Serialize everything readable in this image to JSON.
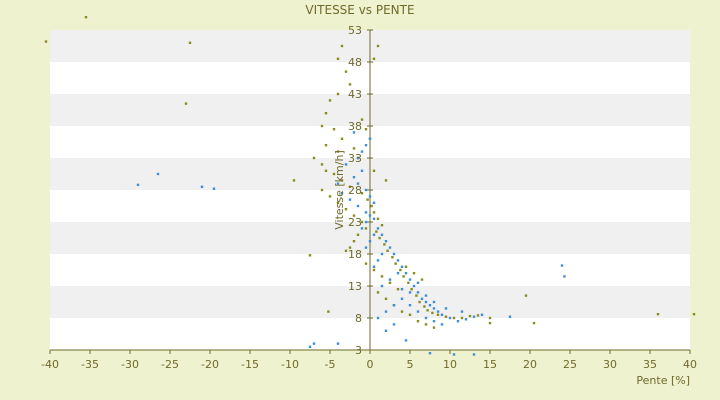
{
  "chart_data": {
    "type": "scatter",
    "title": "VITESSE vs PENTE",
    "xlabel": "Pente [%]",
    "ylabel": "Vitesse [km/h]",
    "xlim": [
      -40,
      40
    ],
    "ylim": [
      3,
      53
    ],
    "xticks": [
      -40,
      -35,
      -30,
      -25,
      -20,
      -15,
      -10,
      -5,
      0,
      5,
      10,
      15,
      20,
      25,
      30,
      35,
      40
    ],
    "yticks": [
      3,
      8,
      13,
      18,
      23,
      28,
      33,
      38,
      43,
      48,
      53
    ],
    "grid": "alternating horizontal bands",
    "legend": "none",
    "colors": {
      "background": "#eef2cf",
      "band_light": "#ffffff",
      "band_dark": "#f0f0f0",
      "axis": "#6e6a2a",
      "series_a": "#8a8a1e",
      "series_b": "#3a8fd6"
    },
    "series": [
      {
        "color": "#8a8a1e",
        "points": [
          [
            -40.5,
            51.2
          ],
          [
            -35.5,
            55.0
          ],
          [
            -22.5,
            51.0
          ],
          [
            -23.0,
            41.5
          ],
          [
            -9.5,
            29.5
          ],
          [
            -7.5,
            17.8
          ],
          [
            -5.2,
            9.0
          ],
          [
            -3.5,
            50.5
          ],
          [
            -4.0,
            48.5
          ],
          [
            -3.0,
            46.5
          ],
          [
            -2.5,
            44.5
          ],
          [
            -4.0,
            43.0
          ],
          [
            -5.0,
            42.0
          ],
          [
            -5.5,
            40.0
          ],
          [
            -6.0,
            38.0
          ],
          [
            -4.5,
            37.5
          ],
          [
            -3.5,
            36.0
          ],
          [
            -5.5,
            35.0
          ],
          [
            -4.0,
            34.0
          ],
          [
            -7.0,
            33.0
          ],
          [
            -6.0,
            32.0
          ],
          [
            -5.5,
            31.0
          ],
          [
            -4.5,
            30.5
          ],
          [
            -3.5,
            29.5
          ],
          [
            -2.5,
            28.5
          ],
          [
            -6.0,
            28.0
          ],
          [
            -5.0,
            27.0
          ],
          [
            -4.0,
            26.0
          ],
          [
            -3.0,
            25.0
          ],
          [
            -2.0,
            24.0
          ],
          [
            -1.0,
            23.0
          ],
          [
            -0.5,
            22.0
          ],
          [
            -1.5,
            21.0
          ],
          [
            -2.0,
            20.0
          ],
          [
            -2.5,
            19.0
          ],
          [
            -3.0,
            18.5
          ],
          [
            -1.0,
            27.5
          ],
          [
            -0.3,
            26.5
          ],
          [
            0.2,
            25.5
          ],
          [
            0.5,
            24.5
          ],
          [
            1.0,
            23.5
          ],
          [
            1.5,
            22.5
          ],
          [
            0.8,
            21.5
          ],
          [
            1.2,
            20.5
          ],
          [
            1.8,
            19.5
          ],
          [
            2.2,
            18.5
          ],
          [
            2.8,
            17.5
          ],
          [
            3.2,
            16.5
          ],
          [
            3.8,
            15.5
          ],
          [
            4.2,
            14.5
          ],
          [
            4.8,
            13.5
          ],
          [
            5.2,
            12.5
          ],
          [
            5.8,
            11.5
          ],
          [
            6.2,
            10.5
          ],
          [
            6.8,
            9.8
          ],
          [
            7.2,
            9.2
          ],
          [
            7.8,
            8.8
          ],
          [
            8.5,
            8.5
          ],
          [
            9.5,
            8.2
          ],
          [
            10.5,
            8.0
          ],
          [
            11.5,
            8.0
          ],
          [
            12.5,
            8.3
          ],
          [
            13.5,
            8.4
          ],
          [
            15.0,
            7.2
          ],
          [
            15.0,
            8.0
          ],
          [
            19.5,
            11.5
          ],
          [
            20.5,
            7.2
          ],
          [
            36.0,
            8.6
          ],
          [
            40.5,
            8.6
          ],
          [
            2.0,
            29.5
          ],
          [
            1.0,
            50.5
          ],
          [
            0.5,
            48.5
          ],
          [
            -1.0,
            39.0
          ],
          [
            -0.5,
            37.5
          ],
          [
            0.0,
            36.0
          ],
          [
            -2.0,
            34.5
          ],
          [
            -1.5,
            33.0
          ],
          [
            0.5,
            31.0
          ],
          [
            1.0,
            12.0
          ],
          [
            2.0,
            11.0
          ],
          [
            3.0,
            10.0
          ],
          [
            4.0,
            9.0
          ],
          [
            5.0,
            8.5
          ],
          [
            6.0,
            7.5
          ],
          [
            7.0,
            7.0
          ],
          [
            8.0,
            6.5
          ],
          [
            4.5,
            16.0
          ],
          [
            5.5,
            15.0
          ],
          [
            6.5,
            14.0
          ],
          [
            3.5,
            12.5
          ],
          [
            2.5,
            13.5
          ],
          [
            1.5,
            14.5
          ],
          [
            0.5,
            15.5
          ],
          [
            -0.5,
            16.5
          ]
        ]
      },
      {
        "color": "#3a8fd6",
        "points": [
          [
            -29.0,
            28.8
          ],
          [
            -26.5,
            30.5
          ],
          [
            -21.0,
            28.5
          ],
          [
            -19.5,
            28.2
          ],
          [
            -7.5,
            3.5
          ],
          [
            -7.0,
            4.0
          ],
          [
            -4.0,
            4.0
          ],
          [
            -2.0,
            30.0
          ],
          [
            -1.5,
            29.0
          ],
          [
            -1.0,
            31.0
          ],
          [
            -0.5,
            28.0
          ],
          [
            0.0,
            27.0
          ],
          [
            0.5,
            26.0
          ],
          [
            -3.0,
            32.0
          ],
          [
            -4.0,
            29.0
          ],
          [
            -3.5,
            27.5
          ],
          [
            -2.5,
            26.5
          ],
          [
            -1.5,
            25.5
          ],
          [
            -0.5,
            24.5
          ],
          [
            0.5,
            23.5
          ],
          [
            1.0,
            22.0
          ],
          [
            1.5,
            21.0
          ],
          [
            2.0,
            20.0
          ],
          [
            2.5,
            19.0
          ],
          [
            3.0,
            18.0
          ],
          [
            3.5,
            17.0
          ],
          [
            4.0,
            16.0
          ],
          [
            4.5,
            15.0
          ],
          [
            5.0,
            14.0
          ],
          [
            5.5,
            13.0
          ],
          [
            6.0,
            12.0
          ],
          [
            6.5,
            11.0
          ],
          [
            7.0,
            10.5
          ],
          [
            7.5,
            10.0
          ],
          [
            8.0,
            9.5
          ],
          [
            8.5,
            9.0
          ],
          [
            9.0,
            8.5
          ],
          [
            10.0,
            8.0
          ],
          [
            11.0,
            7.5
          ],
          [
            12.0,
            7.8
          ],
          [
            13.0,
            8.2
          ],
          [
            14.0,
            8.5
          ],
          [
            17.5,
            8.2
          ],
          [
            24.0,
            16.2
          ],
          [
            24.3,
            14.5
          ],
          [
            7.5,
            2.5
          ],
          [
            10.5,
            2.3
          ],
          [
            13.0,
            2.3
          ],
          [
            4.5,
            4.5
          ],
          [
            2.0,
            6.0
          ],
          [
            3.0,
            7.0
          ],
          [
            1.0,
            8.0
          ],
          [
            2.0,
            9.0
          ],
          [
            3.0,
            10.0
          ],
          [
            4.0,
            11.0
          ],
          [
            5.0,
            12.0
          ],
          [
            1.5,
            13.0
          ],
          [
            2.5,
            14.0
          ],
          [
            3.5,
            15.0
          ],
          [
            0.5,
            16.0
          ],
          [
            1.0,
            17.0
          ],
          [
            1.5,
            18.0
          ],
          [
            -0.5,
            19.0
          ],
          [
            0.0,
            20.0
          ],
          [
            0.5,
            21.0
          ],
          [
            -1.0,
            22.0
          ],
          [
            -0.5,
            23.0
          ],
          [
            0.0,
            24.0
          ],
          [
            -1.5,
            33.0
          ],
          [
            -1.0,
            34.0
          ],
          [
            -0.5,
            35.0
          ],
          [
            0.0,
            36.0
          ],
          [
            -2.0,
            37.0
          ],
          [
            6.0,
            9.0
          ],
          [
            7.0,
            8.0
          ],
          [
            8.0,
            7.5
          ],
          [
            9.0,
            7.0
          ],
          [
            5.0,
            10.0
          ],
          [
            4.0,
            12.5
          ],
          [
            6.0,
            13.5
          ],
          [
            7.0,
            11.5
          ],
          [
            8.0,
            10.5
          ],
          [
            9.5,
            9.5
          ],
          [
            11.5,
            9.0
          ]
        ]
      }
    ]
  }
}
